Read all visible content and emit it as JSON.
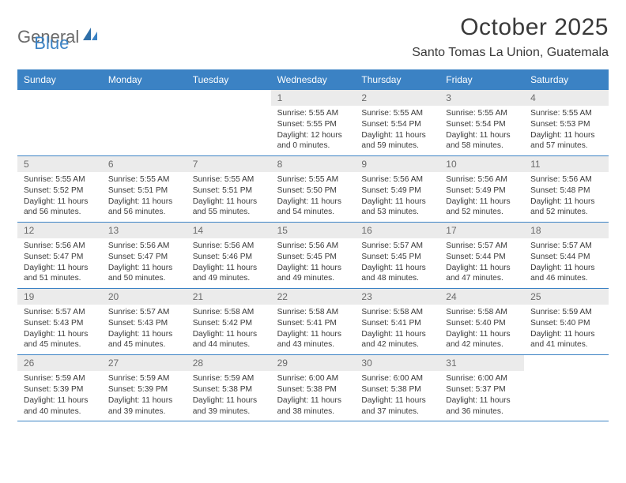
{
  "logo": {
    "text_general": "General",
    "text_blue": "Blue"
  },
  "title": "October 2025",
  "location": "Santo Tomas La Union, Guatemala",
  "colors": {
    "header_bg": "#3b82c4",
    "daynum_bg": "#ebebeb",
    "border": "#3b82c4",
    "text_dark": "#3a3a3a",
    "text_muted": "#6b6b6b"
  },
  "day_names": [
    "Sunday",
    "Monday",
    "Tuesday",
    "Wednesday",
    "Thursday",
    "Friday",
    "Saturday"
  ],
  "weeks": [
    [
      null,
      null,
      null,
      {
        "n": "1",
        "sr": "5:55 AM",
        "ss": "5:55 PM",
        "dl": "12 hours and 0 minutes."
      },
      {
        "n": "2",
        "sr": "5:55 AM",
        "ss": "5:54 PM",
        "dl": "11 hours and 59 minutes."
      },
      {
        "n": "3",
        "sr": "5:55 AM",
        "ss": "5:54 PM",
        "dl": "11 hours and 58 minutes."
      },
      {
        "n": "4",
        "sr": "5:55 AM",
        "ss": "5:53 PM",
        "dl": "11 hours and 57 minutes."
      }
    ],
    [
      {
        "n": "5",
        "sr": "5:55 AM",
        "ss": "5:52 PM",
        "dl": "11 hours and 56 minutes."
      },
      {
        "n": "6",
        "sr": "5:55 AM",
        "ss": "5:51 PM",
        "dl": "11 hours and 56 minutes."
      },
      {
        "n": "7",
        "sr": "5:55 AM",
        "ss": "5:51 PM",
        "dl": "11 hours and 55 minutes."
      },
      {
        "n": "8",
        "sr": "5:55 AM",
        "ss": "5:50 PM",
        "dl": "11 hours and 54 minutes."
      },
      {
        "n": "9",
        "sr": "5:56 AM",
        "ss": "5:49 PM",
        "dl": "11 hours and 53 minutes."
      },
      {
        "n": "10",
        "sr": "5:56 AM",
        "ss": "5:49 PM",
        "dl": "11 hours and 52 minutes."
      },
      {
        "n": "11",
        "sr": "5:56 AM",
        "ss": "5:48 PM",
        "dl": "11 hours and 52 minutes."
      }
    ],
    [
      {
        "n": "12",
        "sr": "5:56 AM",
        "ss": "5:47 PM",
        "dl": "11 hours and 51 minutes."
      },
      {
        "n": "13",
        "sr": "5:56 AM",
        "ss": "5:47 PM",
        "dl": "11 hours and 50 minutes."
      },
      {
        "n": "14",
        "sr": "5:56 AM",
        "ss": "5:46 PM",
        "dl": "11 hours and 49 minutes."
      },
      {
        "n": "15",
        "sr": "5:56 AM",
        "ss": "5:45 PM",
        "dl": "11 hours and 49 minutes."
      },
      {
        "n": "16",
        "sr": "5:57 AM",
        "ss": "5:45 PM",
        "dl": "11 hours and 48 minutes."
      },
      {
        "n": "17",
        "sr": "5:57 AM",
        "ss": "5:44 PM",
        "dl": "11 hours and 47 minutes."
      },
      {
        "n": "18",
        "sr": "5:57 AM",
        "ss": "5:44 PM",
        "dl": "11 hours and 46 minutes."
      }
    ],
    [
      {
        "n": "19",
        "sr": "5:57 AM",
        "ss": "5:43 PM",
        "dl": "11 hours and 45 minutes."
      },
      {
        "n": "20",
        "sr": "5:57 AM",
        "ss": "5:43 PM",
        "dl": "11 hours and 45 minutes."
      },
      {
        "n": "21",
        "sr": "5:58 AM",
        "ss": "5:42 PM",
        "dl": "11 hours and 44 minutes."
      },
      {
        "n": "22",
        "sr": "5:58 AM",
        "ss": "5:41 PM",
        "dl": "11 hours and 43 minutes."
      },
      {
        "n": "23",
        "sr": "5:58 AM",
        "ss": "5:41 PM",
        "dl": "11 hours and 42 minutes."
      },
      {
        "n": "24",
        "sr": "5:58 AM",
        "ss": "5:40 PM",
        "dl": "11 hours and 42 minutes."
      },
      {
        "n": "25",
        "sr": "5:59 AM",
        "ss": "5:40 PM",
        "dl": "11 hours and 41 minutes."
      }
    ],
    [
      {
        "n": "26",
        "sr": "5:59 AM",
        "ss": "5:39 PM",
        "dl": "11 hours and 40 minutes."
      },
      {
        "n": "27",
        "sr": "5:59 AM",
        "ss": "5:39 PM",
        "dl": "11 hours and 39 minutes."
      },
      {
        "n": "28",
        "sr": "5:59 AM",
        "ss": "5:38 PM",
        "dl": "11 hours and 39 minutes."
      },
      {
        "n": "29",
        "sr": "6:00 AM",
        "ss": "5:38 PM",
        "dl": "11 hours and 38 minutes."
      },
      {
        "n": "30",
        "sr": "6:00 AM",
        "ss": "5:38 PM",
        "dl": "11 hours and 37 minutes."
      },
      {
        "n": "31",
        "sr": "6:00 AM",
        "ss": "5:37 PM",
        "dl": "11 hours and 36 minutes."
      },
      null
    ]
  ],
  "labels": {
    "sunrise": "Sunrise:",
    "sunset": "Sunset:",
    "daylight": "Daylight:"
  }
}
